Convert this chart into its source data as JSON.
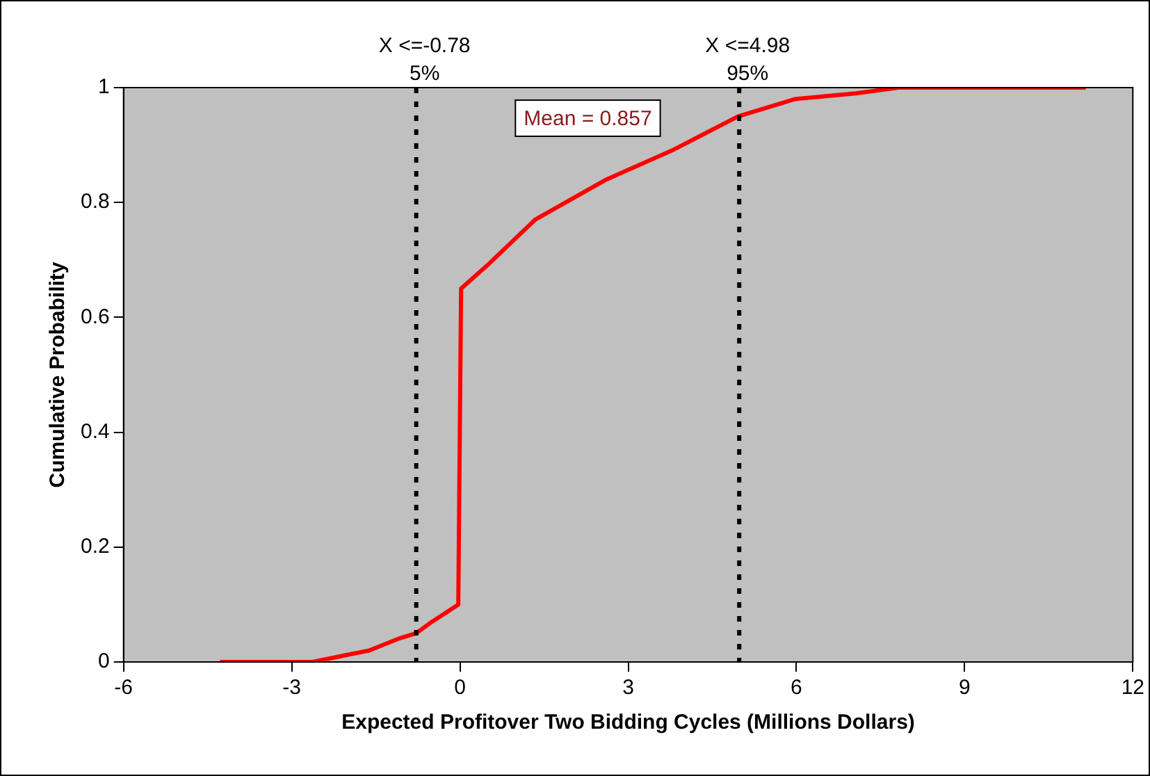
{
  "chart_data": {
    "type": "line",
    "xlabel": "Expected Profitover Two Bidding Cycles (Millions Dollars)",
    "ylabel": "Cumulative Probability",
    "series": [
      {
        "color": "#ff0000",
        "x": [
          -4.28,
          -2.63,
          -2.13,
          -1.62,
          -1.11,
          -0.78,
          -0.5,
          -0.03,
          0.02,
          0.48,
          1.34,
          2.61,
          3.77,
          4.96,
          5.97,
          7.06,
          7.82,
          11.16
        ],
        "values": [
          0,
          0,
          0.01,
          0.02,
          0.04,
          0.05,
          0.07,
          0.1,
          0.65,
          0.69,
          0.77,
          0.84,
          0.89,
          0.95,
          0.98,
          0.99,
          1,
          1
        ]
      }
    ],
    "xlim": [
      -6,
      12
    ],
    "xticks": [
      -6,
      -3,
      0,
      3,
      6,
      9,
      12
    ],
    "ylim": [
      0,
      1
    ],
    "yticks": [
      0,
      0.2,
      0.4,
      0.6,
      0.8,
      1
    ],
    "ref_lines": [
      {
        "axis": "x",
        "value": -0.78,
        "label": "X <=-0.78\n5%",
        "color": "#000000",
        "line_style": "dotted"
      },
      {
        "axis": "x",
        "value": 4.98,
        "label": "X <=4.98\n95%",
        "color": "#000000",
        "line_style": "dotted"
      }
    ],
    "annotations": [
      "Mean = 0.857"
    ],
    "grid": false,
    "legend": false,
    "marker": "none",
    "line_style": "solid"
  }
}
